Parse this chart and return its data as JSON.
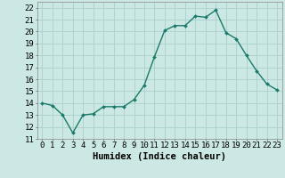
{
  "x": [
    0,
    1,
    2,
    3,
    4,
    5,
    6,
    7,
    8,
    9,
    10,
    11,
    12,
    13,
    14,
    15,
    16,
    17,
    18,
    19,
    20,
    21,
    22,
    23
  ],
  "y": [
    14.0,
    13.8,
    13.0,
    11.5,
    13.0,
    13.1,
    13.7,
    13.7,
    13.7,
    14.3,
    15.5,
    17.9,
    20.1,
    20.5,
    20.5,
    21.3,
    21.2,
    21.8,
    19.9,
    19.4,
    18.0,
    16.7,
    15.6,
    15.1
  ],
  "line_color": "#1a7a6a",
  "marker": "D",
  "marker_size": 2.0,
  "line_width": 1.0,
  "xlabel": "Humidex (Indice chaleur)",
  "xlim": [
    -0.5,
    23.5
  ],
  "ylim": [
    11,
    22.5
  ],
  "yticks": [
    11,
    12,
    13,
    14,
    15,
    16,
    17,
    18,
    19,
    20,
    21,
    22
  ],
  "xtick_labels": [
    "0",
    "1",
    "2",
    "3",
    "4",
    "5",
    "6",
    "7",
    "8",
    "9",
    "10",
    "11",
    "12",
    "13",
    "14",
    "15",
    "16",
    "17",
    "18",
    "19",
    "20",
    "21",
    "22",
    "23"
  ],
  "background_color": "#cce8e4",
  "grid_color": "#aacfcc",
  "xlabel_fontsize": 7.5,
  "tick_fontsize": 6.5
}
